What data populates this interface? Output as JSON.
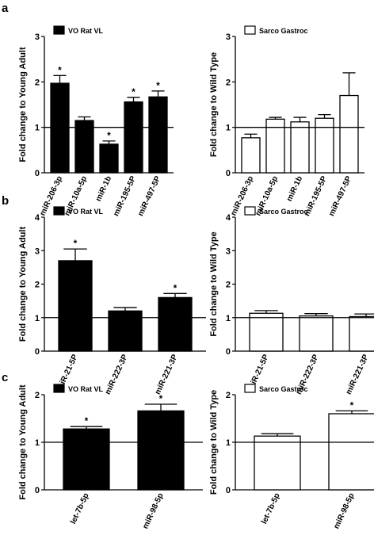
{
  "panels": [
    {
      "letter": "a"
    },
    {
      "letter": "b"
    },
    {
      "letter": "c"
    }
  ],
  "chart_data": [
    {
      "type": "bar",
      "panel": "a",
      "column": "left",
      "ylabel": "Fold change to Young Adult",
      "legend": "VO Rat VL",
      "bar_color": "#000000",
      "ylim": [
        0,
        3
      ],
      "yticks": [
        "0",
        "1",
        "2",
        "3"
      ],
      "reference_line": 1,
      "categories": [
        "miR-206-3p",
        "miR-10a-5p",
        "miR-1b",
        "miR-195-5P",
        "miR-497-5P"
      ],
      "values": [
        1.97,
        1.15,
        0.63,
        1.56,
        1.67
      ],
      "errors": [
        0.17,
        0.08,
        0.07,
        0.1,
        0.13
      ],
      "significant": [
        true,
        false,
        true,
        true,
        true
      ],
      "star": "*"
    },
    {
      "type": "bar",
      "panel": "a",
      "column": "right",
      "ylabel": "Fold change to Wild Type",
      "legend": "Sarco Gastroc",
      "bar_color": "#ffffff",
      "ylim": [
        0,
        3
      ],
      "yticks": [
        "0",
        "1",
        "2",
        "3"
      ],
      "reference_line": 1,
      "categories": [
        "miR-206-3p",
        "miR-10a-5p",
        "miR-1b",
        "miR-195-5P",
        "miR-497-5P"
      ],
      "values": [
        0.77,
        1.18,
        1.12,
        1.2,
        1.7
      ],
      "errors": [
        0.08,
        0.04,
        0.1,
        0.08,
        0.5
      ],
      "significant": [
        false,
        false,
        false,
        false,
        false
      ],
      "star": "*"
    },
    {
      "type": "bar",
      "panel": "b",
      "column": "left",
      "ylabel": "Fold change to Young Adult",
      "legend": "VO Rat VL",
      "bar_color": "#000000",
      "ylim": [
        0,
        4
      ],
      "yticks": [
        "0",
        "1",
        "2",
        "3",
        "4"
      ],
      "reference_line": 1,
      "categories": [
        "miR-21-5P",
        "miR-222-3P",
        "miR-221-3P"
      ],
      "values": [
        2.7,
        1.2,
        1.6
      ],
      "errors": [
        0.35,
        0.1,
        0.12
      ],
      "significant": [
        true,
        false,
        true
      ],
      "star": "*"
    },
    {
      "type": "bar",
      "panel": "b",
      "column": "right",
      "ylabel": "Fold change to Wild Type",
      "legend": "Sarco Gastroc",
      "bar_color": "#ffffff",
      "ylim": [
        0,
        4
      ],
      "yticks": [
        "0",
        "1",
        "2",
        "3",
        "4"
      ],
      "reference_line": 1,
      "categories": [
        "miR-21-5P",
        "miR-222-3P",
        "miR-221-3P"
      ],
      "values": [
        1.13,
        1.05,
        1.03
      ],
      "errors": [
        0.08,
        0.07,
        0.08
      ],
      "significant": [
        false,
        false,
        false
      ],
      "star": "*"
    },
    {
      "type": "bar",
      "panel": "c",
      "column": "left",
      "ylabel": "Fold change to Young Adult",
      "legend": "VO Rat VL",
      "bar_color": "#000000",
      "ylim": [
        0,
        2
      ],
      "yticks": [
        "0",
        "1",
        "2"
      ],
      "reference_line": 1,
      "categories": [
        "let-7b-5p",
        "miR-98-5p"
      ],
      "values": [
        1.28,
        1.66
      ],
      "errors": [
        0.05,
        0.14
      ],
      "significant": [
        true,
        true
      ],
      "star": "*"
    },
    {
      "type": "bar",
      "panel": "c",
      "column": "right",
      "ylabel": "Fold change to Wild Type",
      "legend": "Sarco Gastroc",
      "bar_color": "#ffffff",
      "ylim": [
        0,
        2
      ],
      "yticks": [
        "0",
        "1",
        "2"
      ],
      "reference_line": 1,
      "categories": [
        "let-7b-5p",
        "miR-98-5p"
      ],
      "values": [
        1.13,
        1.6
      ],
      "errors": [
        0.05,
        0.06
      ],
      "significant": [
        false,
        true
      ],
      "star": "*"
    }
  ]
}
